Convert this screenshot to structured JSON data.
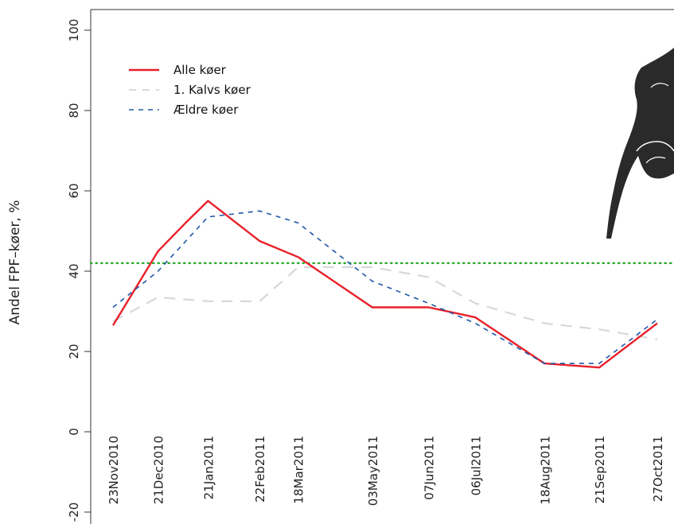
{
  "chart_data": {
    "type": "line",
    "title": "",
    "xlabel": "",
    "ylabel": "Andel FPF–køer, %",
    "ylim": [
      -20,
      100
    ],
    "yticks": [
      -20,
      0,
      20,
      40,
      60,
      80,
      100
    ],
    "ytick_labels": [
      "-20",
      "0",
      "20",
      "40",
      "60",
      "80",
      "100"
    ],
    "grid": false,
    "legend_position": "top-left",
    "x": [
      "2010-11-23",
      "2010-12-21",
      "2011-01-21",
      "2011-02-22",
      "2011-03-18",
      "2011-05-03",
      "2011-06-07",
      "2011-07-06",
      "2011-08-18",
      "2011-09-21",
      "2011-10-27"
    ],
    "x_tick_labels": [
      "23Nov2010",
      "21Dec2010",
      "21Jan2011",
      "22Feb2011",
      "18Mar2011",
      "03May2011",
      "07Jun2011",
      "06Jul2011",
      "18Aug2011",
      "21Sep2011",
      "27Oct2011"
    ],
    "series": [
      {
        "name": "Alle køer",
        "color": "#e8202a",
        "style": "solid",
        "points": [
          [
            "2010-11-23",
            26.5
          ],
          [
            "2010-12-21",
            45
          ],
          [
            "2011-01-07",
            52
          ],
          [
            "2011-01-21",
            57.5
          ],
          [
            "2011-02-22",
            47.5
          ],
          [
            "2011-03-18",
            43.5
          ],
          [
            "2011-05-03",
            31
          ],
          [
            "2011-06-07",
            31
          ],
          [
            "2011-07-06",
            28.5
          ],
          [
            "2011-08-18",
            17
          ],
          [
            "2011-09-21",
            16
          ],
          [
            "2011-10-27",
            27
          ]
        ]
      },
      {
        "name": "1. Kalvs køer",
        "color": "#d8d8d8",
        "style": "dashed",
        "points": [
          [
            "2010-11-23",
            27.5
          ],
          [
            "2010-12-21",
            33.5
          ],
          [
            "2011-01-21",
            32.5
          ],
          [
            "2011-02-22",
            32.5
          ],
          [
            "2011-03-18",
            41
          ],
          [
            "2011-05-03",
            41
          ],
          [
            "2011-06-07",
            38.5
          ],
          [
            "2011-07-06",
            32
          ],
          [
            "2011-08-18",
            27
          ],
          [
            "2011-09-21",
            25.5
          ],
          [
            "2011-10-27",
            23
          ]
        ]
      },
      {
        "name": "Ældre køer",
        "color": "#2057a8",
        "style": "dashed",
        "points": [
          [
            "2010-11-23",
            31
          ],
          [
            "2010-12-21",
            40
          ],
          [
            "2011-01-21",
            53.5
          ],
          [
            "2011-02-22",
            55
          ],
          [
            "2011-03-18",
            52
          ],
          [
            "2011-05-03",
            37.5
          ],
          [
            "2011-06-07",
            32
          ],
          [
            "2011-07-06",
            27
          ],
          [
            "2011-08-18",
            17
          ],
          [
            "2011-09-21",
            17
          ],
          [
            "2011-10-27",
            28
          ]
        ]
      }
    ],
    "reference_line": {
      "y": 42,
      "color": "#2eaa2e",
      "style": "dotted"
    }
  },
  "decoration": {
    "icon": "cow-silhouette-icon",
    "color": "#2a2a2a"
  }
}
